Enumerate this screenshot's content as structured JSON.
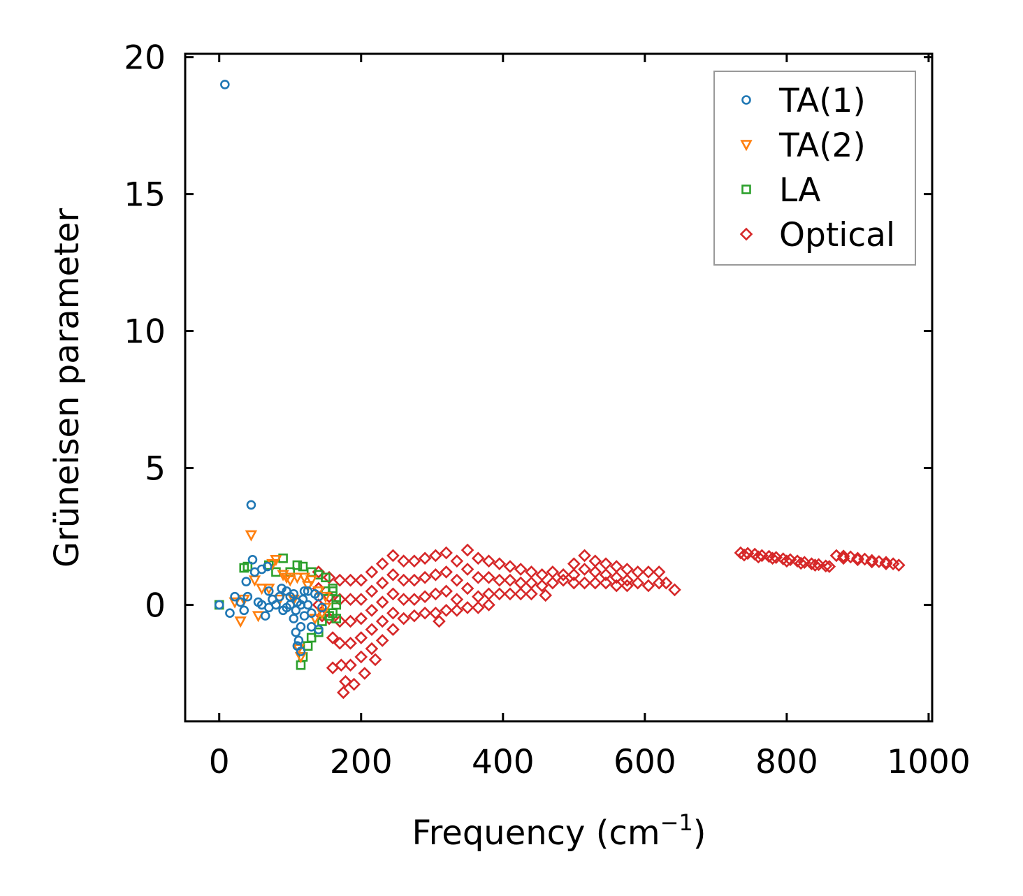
{
  "chart_data": {
    "type": "scatter",
    "title": "",
    "xlabel": {
      "main": "Frequency (cm",
      "sup": "−1",
      "close": ")"
    },
    "ylabel": "Grüneisen parameter",
    "xlim": [
      -48,
      1005
    ],
    "ylim": [
      -4.25,
      20.12
    ],
    "xticks": [
      0,
      200,
      400,
      600,
      800,
      1000
    ],
    "xtick_labels": [
      "0",
      "200",
      "400",
      "600",
      "800",
      "1000"
    ],
    "yticks": [
      0,
      5,
      10,
      15,
      20
    ],
    "ytick_labels": [
      "0",
      "5",
      "10",
      "15",
      "20"
    ],
    "grid": false,
    "legend_position": "top-right",
    "series": [
      {
        "name": "TA(1)",
        "marker": "circle",
        "color": "#1f77b4",
        "points": [
          [
            8,
            19.0
          ],
          [
            0,
            0
          ],
          [
            15,
            -0.3
          ],
          [
            22,
            0.3
          ],
          [
            30,
            0.1
          ],
          [
            35,
            -0.2
          ],
          [
            38,
            0.85
          ],
          [
            40,
            0.3
          ],
          [
            45,
            3.65
          ],
          [
            47,
            1.65
          ],
          [
            50,
            1.2
          ],
          [
            55,
            0.1
          ],
          [
            60,
            1.3
          ],
          [
            65,
            -0.4
          ],
          [
            68,
            1.4
          ],
          [
            70,
            0.5
          ],
          [
            75,
            0.2
          ],
          [
            80,
            0.0
          ],
          [
            85,
            0.3
          ],
          [
            90,
            -0.2
          ],
          [
            95,
            0.5
          ],
          [
            100,
            0.0
          ],
          [
            105,
            -0.5
          ],
          [
            108,
            -1.0
          ],
          [
            110,
            -1.5
          ],
          [
            112,
            -1.3
          ],
          [
            115,
            -0.8
          ],
          [
            118,
            0.2
          ],
          [
            120,
            0.5
          ],
          [
            125,
            0.0
          ],
          [
            130,
            -0.3
          ],
          [
            135,
            0.4
          ],
          [
            140,
            0.3
          ],
          [
            145,
            -0.1
          ],
          [
            100,
            0.3
          ],
          [
            110,
            0.1
          ],
          [
            125,
            0.5
          ],
          [
            130,
            -0.8
          ],
          [
            140,
            -0.9
          ],
          [
            115,
            -1.7
          ],
          [
            60,
            0.0
          ],
          [
            70,
            -0.1
          ],
          [
            88,
            0.6
          ],
          [
            95,
            -0.1
          ],
          [
            105,
            0.4
          ],
          [
            115,
            0.0
          ],
          [
            120,
            -0.4
          ],
          [
            108,
            -0.2
          ]
        ]
      },
      {
        "name": "TA(2)",
        "marker": "triangle-down",
        "color": "#ff7f0e",
        "points": [
          [
            30,
            -0.6
          ],
          [
            22,
            0.1
          ],
          [
            45,
            2.55
          ],
          [
            50,
            0.9
          ],
          [
            60,
            0.6
          ],
          [
            75,
            1.5
          ],
          [
            80,
            1.65
          ],
          [
            90,
            1.1
          ],
          [
            95,
            1.0
          ],
          [
            100,
            0.9
          ],
          [
            110,
            1.0
          ],
          [
            120,
            1.0
          ],
          [
            130,
            0.9
          ],
          [
            140,
            0.5
          ],
          [
            150,
            -0.1
          ],
          [
            145,
            -0.3
          ],
          [
            115,
            -1.9
          ],
          [
            112,
            -1.6
          ],
          [
            35,
            0.2
          ],
          [
            55,
            -0.4
          ],
          [
            70,
            0.6
          ],
          [
            85,
            0.2
          ],
          [
            105,
            0.2
          ],
          [
            125,
            0.7
          ],
          [
            135,
            -0.5
          ],
          [
            150,
            0.3
          ]
        ]
      },
      {
        "name": "LA",
        "marker": "square",
        "color": "#2ca02c",
        "points": [
          [
            0,
            0
          ],
          [
            35,
            1.35
          ],
          [
            40,
            1.4
          ],
          [
            70,
            1.45
          ],
          [
            90,
            1.7
          ],
          [
            110,
            1.45
          ],
          [
            118,
            1.4
          ],
          [
            130,
            1.2
          ],
          [
            140,
            1.1
          ],
          [
            150,
            1.0
          ],
          [
            160,
            0.5
          ],
          [
            165,
            0.2
          ],
          [
            165,
            -0.5
          ],
          [
            155,
            -0.4
          ],
          [
            145,
            -0.6
          ],
          [
            140,
            -1.0
          ],
          [
            125,
            -1.5
          ],
          [
            118,
            -1.9
          ],
          [
            115,
            -2.2
          ],
          [
            160,
            0.6
          ],
          [
            100,
            1.2
          ],
          [
            80,
            1.2
          ],
          [
            150,
            0.5
          ],
          [
            130,
            -1.2
          ],
          [
            165,
            0.0
          ],
          [
            160,
            -0.3
          ]
        ]
      },
      {
        "name": "Optical",
        "marker": "diamond",
        "color": "#d62728",
        "points": [
          [
            140,
            1.2
          ],
          [
            140,
            0.6
          ],
          [
            140,
            0
          ],
          [
            145,
            -0.4
          ],
          [
            155,
            1.0
          ],
          [
            155,
            0.3
          ],
          [
            155,
            -0.5
          ],
          [
            160,
            -1.2
          ],
          [
            160,
            -2.3
          ],
          [
            170,
            0.9
          ],
          [
            170,
            0.2
          ],
          [
            170,
            -0.6
          ],
          [
            170,
            -1.4
          ],
          [
            172,
            -2.2
          ],
          [
            175,
            -3.2
          ],
          [
            178,
            -2.8
          ],
          [
            185,
            0.9
          ],
          [
            185,
            0.2
          ],
          [
            185,
            -0.6
          ],
          [
            185,
            -1.4
          ],
          [
            185,
            -2.2
          ],
          [
            190,
            -2.9
          ],
          [
            200,
            0.9
          ],
          [
            200,
            0.2
          ],
          [
            200,
            -0.5
          ],
          [
            200,
            -1.2
          ],
          [
            200,
            -1.9
          ],
          [
            205,
            -2.5
          ],
          [
            215,
            1.2
          ],
          [
            215,
            0.5
          ],
          [
            215,
            -0.2
          ],
          [
            215,
            -0.9
          ],
          [
            215,
            -1.6
          ],
          [
            220,
            -2.0
          ],
          [
            230,
            1.5
          ],
          [
            230,
            0.8
          ],
          [
            230,
            0.1
          ],
          [
            230,
            -0.6
          ],
          [
            230,
            -1.3
          ],
          [
            245,
            1.8
          ],
          [
            245,
            1.1
          ],
          [
            245,
            0.4
          ],
          [
            245,
            -0.3
          ],
          [
            245,
            -0.9
          ],
          [
            260,
            1.6
          ],
          [
            260,
            0.9
          ],
          [
            260,
            0.2
          ],
          [
            260,
            -0.5
          ],
          [
            275,
            1.6
          ],
          [
            275,
            0.9
          ],
          [
            275,
            0.2
          ],
          [
            275,
            -0.4
          ],
          [
            290,
            1.7
          ],
          [
            290,
            1.0
          ],
          [
            290,
            0.3
          ],
          [
            290,
            -0.3
          ],
          [
            305,
            1.8
          ],
          [
            305,
            1.1
          ],
          [
            305,
            0.4
          ],
          [
            305,
            -0.3
          ],
          [
            310,
            -0.6
          ],
          [
            320,
            1.9
          ],
          [
            320,
            1.2
          ],
          [
            320,
            0.5
          ],
          [
            320,
            -0.2
          ],
          [
            335,
            1.6
          ],
          [
            335,
            0.9
          ],
          [
            335,
            0.2
          ],
          [
            335,
            -0.2
          ],
          [
            350,
            2.0
          ],
          [
            350,
            1.3
          ],
          [
            350,
            0.6
          ],
          [
            350,
            -0.1
          ],
          [
            365,
            1.7
          ],
          [
            365,
            1.0
          ],
          [
            365,
            0.3
          ],
          [
            365,
            -0.1
          ],
          [
            380,
            1.6
          ],
          [
            380,
            1.0
          ],
          [
            380,
            0.4
          ],
          [
            380,
            0.0
          ],
          [
            395,
            1.5
          ],
          [
            395,
            0.9
          ],
          [
            395,
            0.4
          ],
          [
            410,
            1.4
          ],
          [
            410,
            0.9
          ],
          [
            410,
            0.4
          ],
          [
            425,
            1.3
          ],
          [
            425,
            0.8
          ],
          [
            425,
            0.4
          ],
          [
            440,
            1.2
          ],
          [
            440,
            0.8
          ],
          [
            440,
            0.4
          ],
          [
            455,
            1.1
          ],
          [
            455,
            0.7
          ],
          [
            460,
            0.35
          ],
          [
            470,
            1.2
          ],
          [
            470,
            0.8
          ],
          [
            485,
            1.1
          ],
          [
            485,
            0.9
          ],
          [
            500,
            1.5
          ],
          [
            500,
            1.1
          ],
          [
            500,
            0.8
          ],
          [
            515,
            1.8
          ],
          [
            515,
            1.3
          ],
          [
            515,
            0.8
          ],
          [
            530,
            1.6
          ],
          [
            530,
            1.2
          ],
          [
            530,
            0.8
          ],
          [
            545,
            1.5
          ],
          [
            545,
            1.1
          ],
          [
            545,
            0.8
          ],
          [
            560,
            1.4
          ],
          [
            560,
            1.0
          ],
          [
            560,
            0.7
          ],
          [
            575,
            1.3
          ],
          [
            575,
            0.9
          ],
          [
            575,
            0.7
          ],
          [
            590,
            1.2
          ],
          [
            590,
            0.8
          ],
          [
            605,
            1.2
          ],
          [
            605,
            0.7
          ],
          [
            620,
            1.2
          ],
          [
            620,
            0.8
          ],
          [
            630,
            0.8
          ],
          [
            642,
            0.55
          ],
          [
            735,
            1.9
          ],
          [
            745,
            1.88
          ],
          [
            755,
            1.85
          ],
          [
            765,
            1.8
          ],
          [
            775,
            1.77
          ],
          [
            785,
            1.73
          ],
          [
            795,
            1.68
          ],
          [
            805,
            1.65
          ],
          [
            815,
            1.6
          ],
          [
            825,
            1.55
          ],
          [
            835,
            1.5
          ],
          [
            845,
            1.47
          ],
          [
            855,
            1.42
          ],
          [
            860,
            1.4
          ],
          [
            740,
            1.82
          ],
          [
            760,
            1.75
          ],
          [
            780,
            1.7
          ],
          [
            800,
            1.6
          ],
          [
            820,
            1.52
          ],
          [
            840,
            1.45
          ],
          [
            870,
            1.8
          ],
          [
            880,
            1.78
          ],
          [
            890,
            1.75
          ],
          [
            900,
            1.7
          ],
          [
            910,
            1.67
          ],
          [
            920,
            1.62
          ],
          [
            930,
            1.58
          ],
          [
            940,
            1.55
          ],
          [
            950,
            1.5
          ],
          [
            958,
            1.45
          ],
          [
            880,
            1.7
          ],
          [
            900,
            1.65
          ],
          [
            920,
            1.57
          ],
          [
            940,
            1.5
          ]
        ]
      }
    ]
  }
}
